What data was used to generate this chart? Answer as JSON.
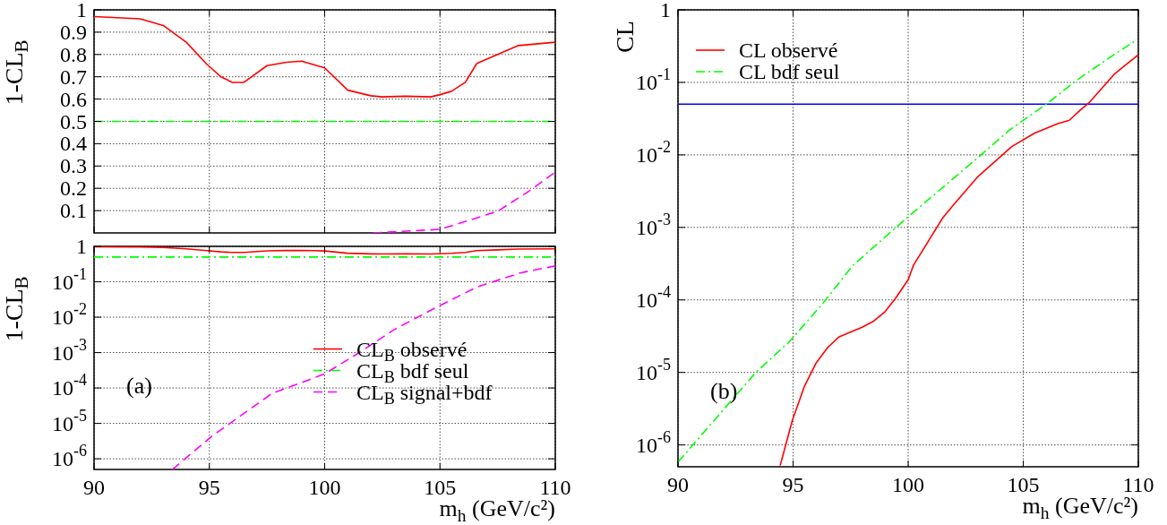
{
  "chart_data": [
    {
      "type": "line",
      "ylabel": "1-CL$_{B}$",
      "xlim": [
        90,
        110
      ],
      "ylim": [
        0,
        1
      ],
      "yticks": [
        0.1,
        0.2,
        0.3,
        0.4,
        0.5,
        0.6,
        0.7,
        0.8,
        0.9,
        1
      ],
      "xticks": [
        90,
        95,
        100,
        105,
        110
      ],
      "tick_labels": "y",
      "grid": true,
      "series": [
        {
          "color": "#ff0000",
          "line_style": "solid",
          "x": [
            90,
            92,
            93,
            94,
            94.9,
            95.5,
            96,
            96.5,
            97.5,
            98.35,
            99,
            99.5,
            100,
            101,
            102,
            102.5,
            103.5,
            104.6,
            105,
            105.5,
            106.1,
            106.6,
            107.5,
            108.4,
            110
          ],
          "values": [
            0.97,
            0.96,
            0.93,
            0.855,
            0.755,
            0.7,
            0.675,
            0.675,
            0.75,
            0.765,
            0.77,
            0.755,
            0.74,
            0.64,
            0.615,
            0.61,
            0.613,
            0.61,
            0.62,
            0.635,
            0.675,
            0.76,
            0.8,
            0.84,
            0.855
          ]
        },
        {
          "color": "#00ff00",
          "line_style": "dashdot",
          "x": [
            90,
            110
          ],
          "values": [
            0.5,
            0.5
          ]
        },
        {
          "color": "#ff00ff",
          "line_style": "dashed",
          "x": [
            102.1,
            105,
            107.5,
            108.9,
            110
          ],
          "values": [
            0,
            0.016,
            0.097,
            0.19,
            0.273
          ]
        }
      ]
    },
    {
      "type": "line",
      "ylabel": "1-CL$_{B}$",
      "xlabel": "m$_{h}$ (GeV/c²)",
      "xlim": [
        90,
        110
      ],
      "ylim": [
        5e-07,
        1
      ],
      "log": true,
      "xticks": [
        90,
        95,
        100,
        105,
        110
      ],
      "yticks": [
        1,
        {
          "value": 0.1,
          "label": "10$^{-1}$"
        },
        {
          "value": 0.01,
          "label": "10$^{-2}$"
        },
        {
          "value": 0.001,
          "label": "10$^{-3}$"
        },
        {
          "value": 0.0001,
          "label": "10$^{-4}$"
        },
        {
          "value": 1e-05,
          "label": "10$^{-5}$"
        },
        {
          "value": 1e-06,
          "label": "10$^{-6}$"
        }
      ],
      "grid": true,
      "legend": "right",
      "annotations": [
        "(a)"
      ],
      "series": [
        {
          "name": "CL$_{B}$ observé",
          "color": "#ff0000",
          "line_style": "solid",
          "x": [
            90,
            92,
            93,
            94,
            94.9,
            95.5,
            96,
            96.5,
            97.5,
            98.35,
            99,
            99.5,
            100,
            101,
            102,
            102.5,
            103.5,
            104.6,
            105,
            105.5,
            106.1,
            106.6,
            107.5,
            108.4,
            110
          ],
          "values": [
            0.97,
            0.96,
            0.93,
            0.855,
            0.755,
            0.7,
            0.675,
            0.675,
            0.75,
            0.765,
            0.77,
            0.755,
            0.74,
            0.64,
            0.615,
            0.61,
            0.613,
            0.61,
            0.62,
            0.635,
            0.675,
            0.76,
            0.8,
            0.84,
            0.855
          ]
        },
        {
          "name": "CL$_{B}$ bdf seul",
          "color": "#00ff00",
          "line_style": "dashdot",
          "x": [
            90,
            110
          ],
          "values": [
            0.5,
            0.5
          ]
        },
        {
          "name": "CL$_{B}$ signal+bdf",
          "color": "#ff00ff",
          "line_style": "dashed",
          "x": [
            93.4,
            95.1,
            97.7,
            100,
            101.5,
            103,
            104.7,
            106.6,
            108.5,
            110
          ],
          "values": [
            5e-07,
            4.3e-06,
            6.9e-05,
            0.00025,
            0.001,
            0.0044,
            0.017,
            0.071,
            0.18,
            0.28
          ]
        }
      ]
    },
    {
      "type": "line",
      "ylabel": "CL",
      "xlabel": "m$_{h}$ (GeV/c²)",
      "xlim": [
        90,
        110
      ],
      "ylim": [
        5e-07,
        1
      ],
      "log": true,
      "xticks": [
        90,
        95,
        100,
        105,
        110
      ],
      "yticks": [
        1,
        {
          "value": 0.1,
          "label": "10$^{-1}$"
        },
        {
          "value": 0.01,
          "label": "10$^{-2}$"
        },
        {
          "value": 0.001,
          "label": "10$^{-3}$"
        },
        {
          "value": 0.0001,
          "label": "10$^{-4}$"
        },
        {
          "value": 1e-05,
          "label": "10$^{-5}$"
        },
        {
          "value": 1e-06,
          "label": "10$^{-6}$"
        }
      ],
      "grid": true,
      "legend": "top left",
      "annotations": [
        "(b)"
      ],
      "ref_lines": [
        {
          "axis": "y",
          "value": 0.05,
          "color": "#0000ff"
        }
      ],
      "series": [
        {
          "name": "CL observé",
          "color": "#ff0000",
          "line_style": "solid",
          "x": [
            94.44,
            94.97,
            95.5,
            96,
            96.5,
            97,
            98,
            98.5,
            99,
            99.45,
            100,
            100.23,
            101.5,
            102,
            103,
            104.5,
            105.5,
            106.5,
            107,
            107.5,
            107.85,
            108.95,
            109.5,
            110
          ],
          "values": [
            5.2e-07,
            2.2e-06,
            6.5e-06,
            1.35e-05,
            2.2e-05,
            3.1e-05,
            4.2e-05,
            5.1e-05,
            6.9e-05,
            0.000105,
            0.00019,
            0.0003,
            0.00135,
            0.0021,
            0.0049,
            0.013,
            0.02,
            0.027,
            0.03,
            0.042,
            0.052,
            0.129,
            0.18,
            0.24
          ]
        },
        {
          "name": "CL bdf seul",
          "color": "#00ff00",
          "line_style": "dashdot",
          "x": [
            90,
            93.38,
            94.86,
            96.26,
            97.6,
            100,
            103.2,
            104.4,
            106,
            107.25,
            108.8,
            109.9
          ],
          "values": [
            5.8e-07,
            1e-05,
            2.7e-05,
            8.7e-05,
            0.0003,
            0.0014,
            0.0102,
            0.022,
            0.05,
            0.103,
            0.225,
            0.38
          ]
        }
      ]
    }
  ]
}
